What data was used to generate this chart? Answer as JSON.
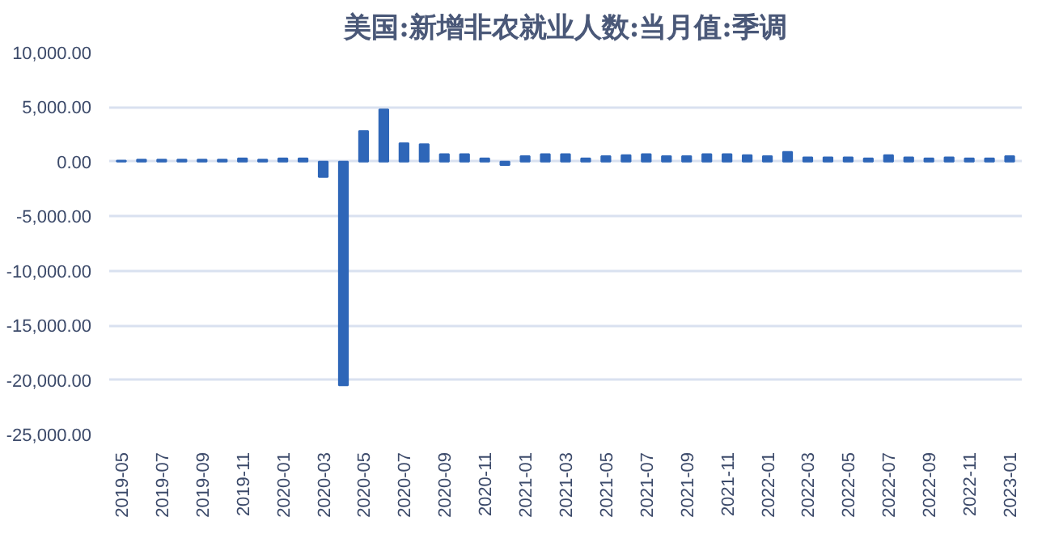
{
  "chart_data": {
    "type": "bar",
    "title": "美国:新增非农就业人数:当月值:季调",
    "categories": [
      "2019-05",
      null,
      "2019-07",
      null,
      "2019-09",
      null,
      "2019-11",
      null,
      "2020-01",
      null,
      "2020-03",
      null,
      "2020-05",
      null,
      "2020-07",
      null,
      "2020-09",
      null,
      "2020-11",
      null,
      "2021-01",
      null,
      "2021-03",
      null,
      "2021-05",
      null,
      "2021-07",
      null,
      "2021-09",
      null,
      "2021-11",
      null,
      "2022-01",
      null,
      "2022-03",
      null,
      "2022-05",
      null,
      "2022-07",
      null,
      "2022-09",
      null,
      "2022-11",
      null,
      "2023-01"
    ],
    "values": [
      100,
      200,
      200,
      200,
      200,
      200,
      300,
      200,
      300,
      300,
      -1400,
      -20500,
      2800,
      4800,
      1700,
      1600,
      700,
      700,
      300,
      -300,
      500,
      700,
      700,
      300,
      500,
      600,
      700,
      500,
      500,
      700,
      700,
      600,
      500,
      900,
      400,
      400,
      400,
      300,
      600,
      400,
      300,
      400,
      300,
      300,
      500
    ],
    "color": "#2e66b8",
    "ylim": [
      -25000,
      10000
    ],
    "yticks": [
      {
        "value": -25000,
        "label": "-25,000.00"
      },
      {
        "value": -20000,
        "label": "-20,000.00"
      },
      {
        "value": -15000,
        "label": "-15,000.00"
      },
      {
        "value": -10000,
        "label": "-10,000.00"
      },
      {
        "value": -5000,
        "label": "-5,000.00"
      },
      {
        "value": 0,
        "label": "0.00"
      },
      {
        "value": 5000,
        "label": "5,000.00"
      },
      {
        "value": 10000,
        "label": "10,000.00"
      }
    ],
    "grid": "y"
  }
}
